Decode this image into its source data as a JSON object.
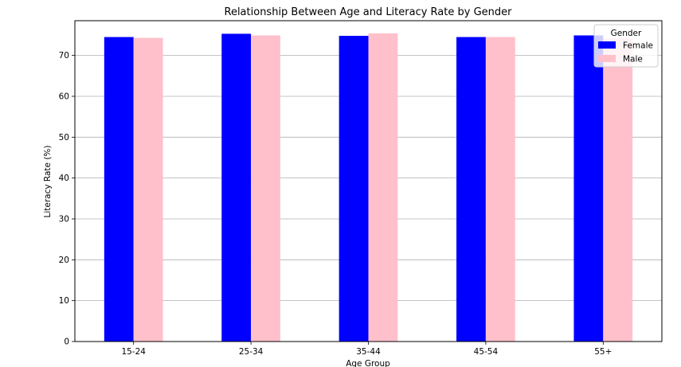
{
  "chart_data": {
    "type": "bar",
    "title": "Relationship Between Age and Literacy Rate by Gender",
    "xlabel": "Age Group",
    "ylabel": "Literacy Rate (%)",
    "categories": [
      "15-24",
      "25-34",
      "35-44",
      "45-54",
      "55+"
    ],
    "series": [
      {
        "name": "Female",
        "color": "#0000ff",
        "values": [
          74.5,
          75.3,
          74.8,
          74.5,
          74.9
        ]
      },
      {
        "name": "Male",
        "color": "#ffc0cb",
        "values": [
          74.3,
          74.9,
          75.4,
          74.5,
          74.2
        ]
      }
    ],
    "ylim": [
      0,
      78.5
    ],
    "yticks": [
      0,
      10,
      20,
      30,
      40,
      50,
      60,
      70
    ],
    "grid": "y",
    "legend": {
      "title": "Gender",
      "placement": "top-right"
    }
  }
}
